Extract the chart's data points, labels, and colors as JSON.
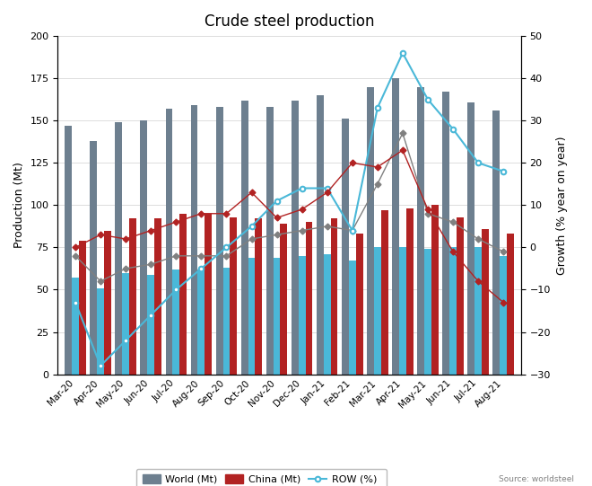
{
  "title": "Crude steel production",
  "ylabel_left": "Production (Mt)",
  "ylabel_right": "Growth (% year on year)",
  "source": "Source: worldsteel",
  "months": [
    "Mar-20",
    "Apr-20",
    "May-20",
    "Jun-20",
    "Jul-20",
    "Aug-20",
    "Sep-20",
    "Oct-20",
    "Nov-20",
    "Dec-20",
    "Jan-21",
    "Feb-21",
    "Mar-21",
    "Apr-21",
    "May-21",
    "Jun-21",
    "Jul-21",
    "Aug-21"
  ],
  "world_mt": [
    147,
    138,
    149,
    150,
    157,
    159,
    158,
    162,
    158,
    162,
    165,
    151,
    170,
    175,
    170,
    167,
    161,
    156
  ],
  "row_mt": [
    57,
    51,
    60,
    59,
    62,
    62,
    63,
    69,
    69,
    70,
    71,
    67,
    75,
    75,
    74,
    75,
    75,
    70
  ],
  "china_mt": [
    79,
    85,
    92,
    92,
    95,
    95,
    93,
    92,
    89,
    90,
    92,
    83,
    97,
    98,
    100,
    93,
    86,
    83
  ],
  "world_pct": [
    -2,
    -8,
    -5,
    -4,
    -2,
    -2,
    -2,
    2,
    3,
    4,
    5,
    4,
    15,
    27,
    8,
    6,
    2,
    -1
  ],
  "row_pct": [
    -13,
    -28,
    -22,
    -16,
    -10,
    -5,
    0,
    5,
    11,
    14,
    14,
    4,
    33,
    46,
    35,
    28,
    20,
    18
  ],
  "china_pct": [
    0,
    3,
    2,
    4,
    6,
    8,
    8,
    13,
    7,
    9,
    13,
    20,
    19,
    23,
    9,
    -1,
    -8,
    -13
  ],
  "color_world": "#6d7f8f",
  "color_row": "#4ab8d8",
  "color_china": "#b22222",
  "color_world_line": "#808080",
  "color_row_line": "#4ab8d8",
  "color_china_line": "#b22222",
  "ylim_left": [
    0,
    200
  ],
  "ylim_right": [
    -30,
    50
  ],
  "yticks_left": [
    0,
    25,
    50,
    75,
    100,
    125,
    150,
    175,
    200
  ],
  "yticks_right": [
    -30,
    -20,
    -10,
    0,
    10,
    20,
    30,
    40,
    50
  ]
}
